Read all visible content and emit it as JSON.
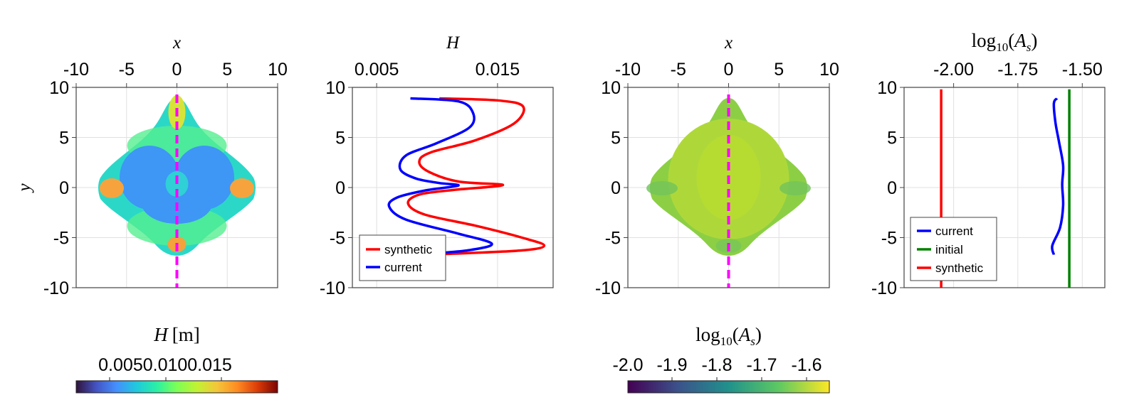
{
  "colors": {
    "synthetic": "#ff0000",
    "current": "#0000ff",
    "initial": "#008000",
    "profile_line": "#ff00ff",
    "grid": "#e0e0e0",
    "frame": "#444444"
  },
  "chart_data": [
    {
      "id": "panel-1",
      "type": "heatmap",
      "title": "",
      "xlabel": "x",
      "ylabel": "y",
      "xaxis_position": "top",
      "xlim": [
        -10,
        10
      ],
      "ylim": [
        -10,
        10
      ],
      "xticks": [
        -10,
        -5,
        0,
        5,
        10
      ],
      "yticks": [
        10,
        5,
        0,
        -5,
        -10
      ],
      "xtick_labels": [
        "-10",
        "-5",
        "0",
        "5",
        "10"
      ],
      "ytick_labels": [
        "10",
        "5",
        "0",
        "-5",
        "-10"
      ],
      "colormap": "turbo",
      "field": "H [m]",
      "domain_shape": "rounded diamond, x from -7.7 to 7.7, y from -6.8 to 8.9",
      "profile_line_x": 0,
      "colorbar": {
        "label": "H [m]",
        "label_main": "H",
        "label_unit": "[m]",
        "tick_labels_text": "0.0050.0100.015",
        "range": [
          0.002,
          0.02
        ],
        "ticks": [
          0.005,
          0.01,
          0.015
        ]
      }
    },
    {
      "id": "panel-2",
      "type": "line",
      "xlabel": "H",
      "xaxis_position": "top",
      "xlim": [
        0.002,
        0.02
      ],
      "ylim": [
        -10,
        10
      ],
      "xticks": [
        0.005,
        0.015
      ],
      "xtick_labels": [
        "0.005",
        "0.015"
      ],
      "ytick_labels": [
        "10",
        "5",
        "0",
        "-5",
        "-10"
      ],
      "legend": {
        "position": "bottom-left",
        "entries": [
          "synthetic",
          "current"
        ]
      },
      "series": [
        {
          "name": "synthetic",
          "points": [
            [
              0.0098,
              8.9
            ],
            [
              0.015,
              8.7
            ],
            [
              0.0173,
              8.1
            ],
            [
              0.0165,
              6.4
            ],
            [
              0.013,
              4.7
            ],
            [
              0.009,
              3.5
            ],
            [
              0.008,
              2.6
            ],
            [
              0.0088,
              1.6
            ],
            [
              0.0115,
              0.6
            ],
            [
              0.0155,
              0.25
            ],
            [
              0.011,
              -0.25
            ],
            [
              0.008,
              -0.7
            ],
            [
              0.007,
              -1.6
            ],
            [
              0.0085,
              -2.7
            ],
            [
              0.013,
              -3.8
            ],
            [
              0.0172,
              -5.0
            ],
            [
              0.0192,
              -5.8
            ],
            [
              0.017,
              -6.3
            ],
            [
              0.01,
              -6.65
            ]
          ]
        },
        {
          "name": "current",
          "points": [
            [
              0.0072,
              8.9
            ],
            [
              0.0115,
              8.6
            ],
            [
              0.0128,
              7.5
            ],
            [
              0.0125,
              6.0
            ],
            [
              0.0095,
              4.4
            ],
            [
              0.0068,
              3.2
            ],
            [
              0.0063,
              1.8
            ],
            [
              0.0077,
              0.9
            ],
            [
              0.0098,
              0.45
            ],
            [
              0.0115,
              0.2
            ],
            [
              0.0085,
              -0.3
            ],
            [
              0.006,
              -1.0
            ],
            [
              0.0053,
              -1.9
            ],
            [
              0.0068,
              -3.2
            ],
            [
              0.0115,
              -4.6
            ],
            [
              0.0145,
              -5.6
            ],
            [
              0.0125,
              -6.25
            ],
            [
              0.009,
              -6.6
            ]
          ]
        }
      ]
    },
    {
      "id": "panel-3",
      "type": "heatmap",
      "xlabel": "x",
      "xaxis_position": "top",
      "xlim": [
        -10,
        10
      ],
      "ylim": [
        -10,
        10
      ],
      "xtick_labels": [
        "-10",
        "-5",
        "0",
        "5",
        "10"
      ],
      "ytick_labels": [
        "10",
        "5",
        "0",
        "-5",
        "-10"
      ],
      "colormap": "viridis",
      "field": "log10(A_s)",
      "profile_line_x": 0,
      "colorbar": {
        "label": "log10(A_s)",
        "range": [
          -2.05,
          -1.55
        ],
        "ticks": [
          -2.0,
          -1.9,
          -1.8,
          -1.7,
          -1.6
        ],
        "tick_labels": [
          "-2.0",
          "-1.9",
          "-1.8",
          "-1.7",
          "-1.6"
        ]
      }
    },
    {
      "id": "panel-4",
      "type": "line",
      "xlabel": "log10(A_s)",
      "xaxis_position": "top",
      "xlim": [
        -2.12,
        -1.47
      ],
      "ylim": [
        -10,
        10
      ],
      "xticks": [
        -2.0,
        -1.75,
        -1.5
      ],
      "xtick_labels": [
        "-2.00",
        "-1.75",
        "-1.50"
      ],
      "ytick_labels": [
        "10",
        "5",
        "0",
        "-5",
        "-10"
      ],
      "legend": {
        "position": "bottom-left",
        "entries": [
          "current",
          "initial",
          "synthetic"
        ]
      },
      "series": [
        {
          "name": "current",
          "points": [
            [
              -1.625,
              8.9
            ],
            [
              -1.635,
              8.4
            ],
            [
              -1.63,
              6.5
            ],
            [
              -1.618,
              4.5
            ],
            [
              -1.605,
              2.2
            ],
            [
              -1.608,
              0.3
            ],
            [
              -1.605,
              -1.8
            ],
            [
              -1.615,
              -4.0
            ],
            [
              -1.64,
              -5.8
            ],
            [
              -1.635,
              -6.7
            ]
          ]
        },
        {
          "name": "initial",
          "points": [
            [
              -1.585,
              9.8
            ],
            [
              -1.585,
              -10
            ]
          ]
        },
        {
          "name": "synthetic",
          "points": [
            [
              -2.0,
              9.8
            ],
            [
              -2.0,
              -10
            ]
          ]
        }
      ]
    }
  ]
}
